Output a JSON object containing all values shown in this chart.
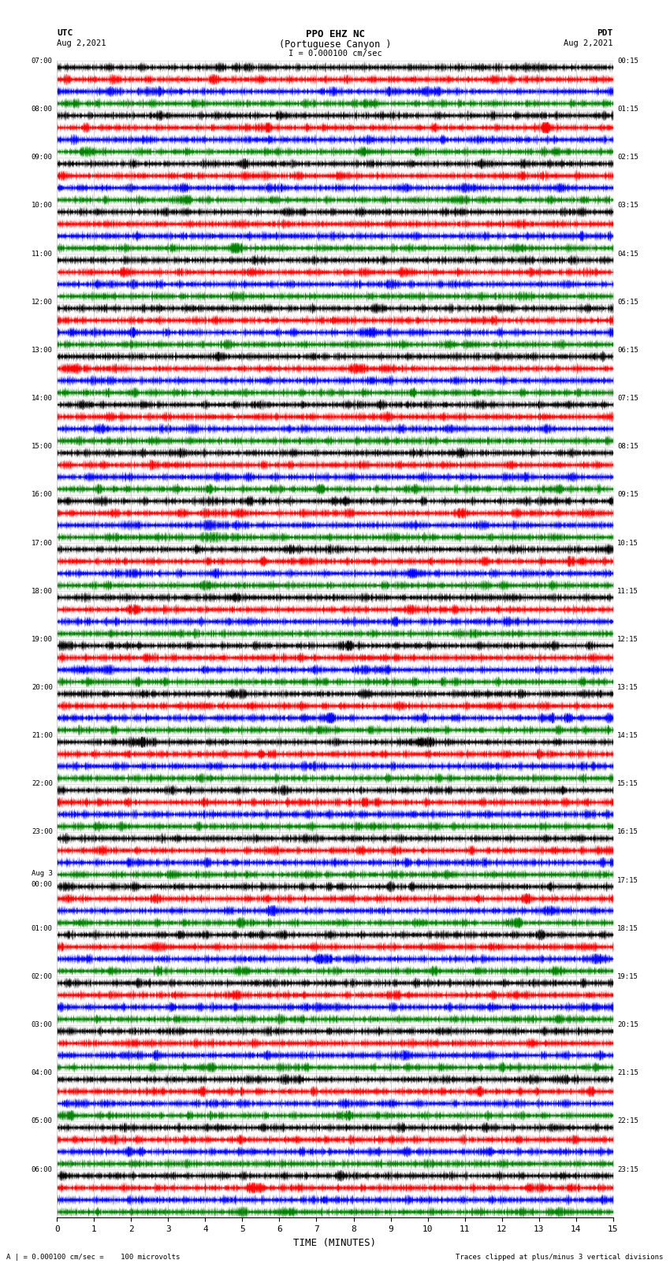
{
  "title_line1": "PPO EHZ NC",
  "title_line2": "(Portuguese Canyon )",
  "scale_label": "I = 0.000100 cm/sec",
  "utc_label": "UTC",
  "pdt_label": "PDT",
  "date_left": "Aug 2,2021",
  "date_right": "Aug 2,2021",
  "bottom_left": "A | = 0.000100 cm/sec =    100 microvolts",
  "bottom_right": "Traces clipped at plus/minus 3 vertical divisions",
  "xlabel": "TIME (MINUTES)",
  "xlim": [
    0,
    15
  ],
  "xticks": [
    0,
    1,
    2,
    3,
    4,
    5,
    6,
    7,
    8,
    9,
    10,
    11,
    12,
    13,
    14,
    15
  ],
  "trace_colors": [
    "black",
    "red",
    "blue",
    "green"
  ],
  "n_rows": 24,
  "minutes_per_row": 15,
  "fig_width": 8.5,
  "fig_height": 16.13,
  "background_color": "white",
  "left_times": [
    "07:00",
    "08:00",
    "09:00",
    "10:00",
    "11:00",
    "12:00",
    "13:00",
    "14:00",
    "15:00",
    "16:00",
    "17:00",
    "18:00",
    "19:00",
    "20:00",
    "21:00",
    "22:00",
    "23:00",
    "Aug 3\n00:00",
    "01:00",
    "02:00",
    "03:00",
    "04:00",
    "05:00",
    "06:00"
  ],
  "right_times": [
    "00:15",
    "01:15",
    "02:15",
    "03:15",
    "04:15",
    "05:15",
    "06:15",
    "07:15",
    "08:15",
    "09:15",
    "10:15",
    "11:15",
    "12:15",
    "13:15",
    "14:15",
    "15:15",
    "16:15",
    "17:15",
    "18:15",
    "19:15",
    "20:15",
    "21:15",
    "22:15",
    "23:15"
  ],
  "earthquake1_row": 9,
  "earthquake1_minute": 3.8,
  "earthquake1_amp": 3.5,
  "earthquake2_row": 15,
  "earthquake2_minute": 8.5,
  "earthquake2_amp": 2.0
}
